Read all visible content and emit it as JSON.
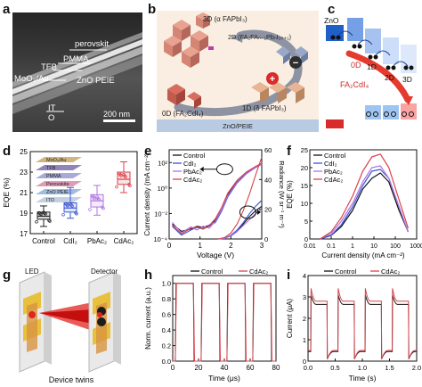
{
  "panel_labels": {
    "a": "a",
    "b": "b",
    "c": "c",
    "d": "d",
    "e": "e",
    "f": "f",
    "g": "g",
    "h": "h",
    "i": "i"
  },
  "panel_a": {
    "labels": [
      "perovskit",
      "PMMA",
      "TFB",
      "MoO₃/Au",
      "ZnO PEIE",
      "IT",
      "O"
    ],
    "scale_bar": "200 nm"
  },
  "panel_b": {
    "labels": [
      "3D (α FAPbI₃)",
      "2D (FA₂FAₙ₋₁PbₙI₃ₙ₊₁)",
      "0D (FA₂CdI₄)",
      "1D (δ FAPbI₃)",
      "ZnO/PEIE"
    ],
    "signs": [
      "−",
      "+"
    ]
  },
  "panel_c": {
    "labels": [
      "ZnO",
      "0D",
      "1D",
      "2D",
      "3D",
      "FA₂CdI₄"
    ],
    "band_colors": [
      "#1f5fc8",
      "#5d8fe0",
      "#95b7ef",
      "#c7daf8",
      "#d92b2b",
      "#f26a6a",
      "#f9a3a3"
    ]
  },
  "panel_d": {
    "device_layers": [
      "MoO₃/Au",
      "TFB",
      "PMMA",
      "Perovskite",
      "ZnO PEIE",
      "ITO"
    ],
    "chart_data": {
      "type": "box",
      "categories": [
        "Control",
        "CdI₂",
        "PbAc₂",
        "CdAc₂"
      ],
      "ylabel": "EQE (%)",
      "ylim": [
        17,
        25
      ],
      "yticks": [
        17,
        19,
        21,
        23,
        25
      ],
      "colors": [
        "#222222",
        "#3a55d6",
        "#b074e2",
        "#d9424b"
      ],
      "boxes": [
        {
          "name": "Control",
          "min": 17.7,
          "q1": 18.4,
          "median": 18.7,
          "q3": 19.1,
          "max": 19.7
        },
        {
          "name": "CdI₂",
          "min": 18.5,
          "q1": 19.1,
          "median": 19.5,
          "q3": 20.0,
          "max": 21.5
        },
        {
          "name": "PbAc₂",
          "min": 18.8,
          "q1": 19.6,
          "median": 20.2,
          "q3": 20.8,
          "max": 21.7
        },
        {
          "name": "CdAc₂",
          "min": 21.0,
          "q1": 21.8,
          "median": 22.3,
          "q3": 23.0,
          "max": 24.0
        }
      ]
    }
  },
  "panel_e": {
    "chart_data": {
      "type": "line",
      "xlabel": "Voltage (V)",
      "ylabel_left": "Current density (mA cm⁻²)",
      "ylabel_right": "Radiance (W sr⁻¹ m⁻²)",
      "xlim": [
        0,
        3
      ],
      "xticks": [
        0,
        1,
        2,
        3
      ],
      "ylim_left": [
        0.0001,
        1000.0
      ],
      "yticks_left": [
        "10⁻⁴",
        "10⁻²",
        "10⁰",
        "10²"
      ],
      "ylim_right": [
        0,
        60
      ],
      "yticks_right": [
        0,
        20,
        40,
        60
      ],
      "legend": [
        "Control",
        "CdI₂",
        "PbAc₂",
        "CdAc₂"
      ],
      "colors": [
        "#111111",
        "#3a55d6",
        "#b074e2",
        "#d9424b"
      ],
      "current_series": [
        {
          "name": "Control",
          "x": [
            0.1,
            0.4,
            0.7,
            0.9,
            1.1,
            1.3,
            1.5,
            1.7,
            1.9,
            2.2,
            2.5,
            2.8,
            3.0
          ],
          "y": [
            0.0015,
            0.0004,
            0.0006,
            0.001,
            0.0008,
            0.0012,
            0.003,
            0.02,
            0.3,
            3,
            15,
            45,
            80
          ]
        },
        {
          "name": "CdI₂",
          "x": [
            0.1,
            0.4,
            0.7,
            0.9,
            1.1,
            1.3,
            1.5,
            1.7,
            1.9,
            2.2,
            2.5,
            2.8,
            3.0
          ],
          "y": [
            0.001,
            0.0002,
            0.0005,
            0.0008,
            0.0006,
            0.001,
            0.002,
            0.015,
            0.2,
            2.5,
            13,
            40,
            75
          ]
        },
        {
          "name": "PbAc₂",
          "x": [
            0.1,
            0.4,
            0.7,
            0.9,
            1.1,
            1.3,
            1.5,
            1.7,
            1.9,
            2.2,
            2.5,
            2.8,
            3.0
          ],
          "y": [
            0.002,
            0.0003,
            0.0009,
            0.0005,
            0.001,
            0.0007,
            0.0025,
            0.02,
            0.25,
            2.8,
            14,
            42,
            78
          ]
        },
        {
          "name": "CdAc₂",
          "x": [
            0.1,
            0.4,
            0.7,
            0.9,
            1.1,
            1.3,
            1.5,
            1.7,
            1.9,
            2.2,
            2.5,
            2.8,
            3.0
          ],
          "y": [
            0.0012,
            0.00025,
            0.0007,
            0.0009,
            0.0006,
            0.0011,
            0.004,
            0.03,
            0.4,
            4,
            18,
            50,
            90
          ]
        }
      ],
      "radiance_series": [
        {
          "name": "Control",
          "x": [
            1.6,
            1.8,
            2.0,
            2.2,
            2.4,
            2.6,
            2.8,
            3.0
          ],
          "y": [
            0,
            0.5,
            2,
            5,
            10,
            15,
            19,
            22
          ]
        },
        {
          "name": "CdI₂",
          "x": [
            1.6,
            1.8,
            2.0,
            2.2,
            2.4,
            2.6,
            2.8,
            3.0
          ],
          "y": [
            0,
            0.5,
            2.5,
            6,
            11,
            17,
            22,
            26
          ]
        },
        {
          "name": "PbAc₂",
          "x": [
            1.6,
            1.8,
            2.0,
            2.2,
            2.4,
            2.6,
            2.8,
            3.0
          ],
          "y": [
            0,
            0.4,
            2,
            5,
            9,
            13,
            17,
            20
          ]
        },
        {
          "name": "CdAc₂",
          "x": [
            1.6,
            1.8,
            2.0,
            2.2,
            2.4,
            2.6,
            2.8,
            3.0
          ],
          "y": [
            0,
            1,
            4,
            10,
            19,
            30,
            43,
            55
          ]
        }
      ]
    }
  },
  "panel_f": {
    "chart_data": {
      "type": "line",
      "xlabel": "Current density (mA cm⁻²)",
      "ylabel": "EQE (%)",
      "xscale": "log",
      "xlim": [
        0.01,
        1000
      ],
      "xticks": [
        "0.01",
        "0.1",
        "1",
        "10",
        "100",
        "1000"
      ],
      "ylim": [
        0,
        25
      ],
      "yticks": [
        0,
        5,
        10,
        15,
        20,
        25
      ],
      "legend": [
        "Control",
        "CdI₂",
        "PbAc₂",
        "CdAc₂"
      ],
      "colors": [
        "#111111",
        "#3a55d6",
        "#b074e2",
        "#d9424b"
      ],
      "series": [
        {
          "name": "Control",
          "x": [
            0.03,
            0.1,
            0.3,
            1,
            3,
            8,
            20,
            50,
            150,
            400
          ],
          "y": [
            0,
            1,
            3.5,
            8,
            14,
            17,
            18.5,
            16,
            8,
            2
          ]
        },
        {
          "name": "CdI₂",
          "x": [
            0.03,
            0.1,
            0.3,
            1,
            3,
            8,
            20,
            50,
            150,
            400
          ],
          "y": [
            0,
            1,
            4,
            9,
            15,
            19,
            19.5,
            17,
            9,
            2
          ]
        },
        {
          "name": "PbAc₂",
          "x": [
            0.03,
            0.1,
            0.3,
            1,
            3,
            8,
            20,
            50,
            150,
            400
          ],
          "y": [
            0,
            1.5,
            5,
            10,
            16,
            20,
            20.5,
            17,
            9,
            2
          ]
        },
        {
          "name": "CdAc₂",
          "x": [
            0.03,
            0.1,
            0.3,
            1,
            3,
            8,
            20,
            50,
            150,
            400
          ],
          "y": [
            0,
            2,
            6,
            12,
            19,
            23,
            23.8,
            20,
            11,
            3
          ]
        }
      ]
    }
  },
  "panel_g": {
    "labels": [
      "LED",
      "Detector",
      "Device twins"
    ]
  },
  "panel_h": {
    "chart_data": {
      "type": "line",
      "xlabel": "Time (μs)",
      "ylabel": "Norm. current (a.u.)",
      "xlim": [
        0,
        80
      ],
      "xticks": [
        0,
        20,
        40,
        60,
        80
      ],
      "ylim": [
        0,
        1.1
      ],
      "yticks": [
        "0.0",
        "0.2",
        "0.4",
        "0.6",
        "0.8",
        "1.0"
      ],
      "legend": [
        "Control",
        "CdAc₂"
      ],
      "colors": [
        "#111111",
        "#d9424b"
      ],
      "pulses_on": [
        [
          2,
          16
        ],
        [
          22,
          36
        ],
        [
          42,
          56
        ],
        [
          62,
          76
        ]
      ]
    }
  },
  "panel_i": {
    "chart_data": {
      "type": "line",
      "xlabel": "Time (s)",
      "ylabel": "Current (μA)",
      "xlim": [
        0,
        2
      ],
      "xticks": [
        "0.0",
        "0.5",
        "1.0",
        "1.5",
        "2.0"
      ],
      "ylim": [
        0,
        4
      ],
      "yticks": [
        0,
        1,
        2,
        3,
        4
      ],
      "legend": [
        "Control",
        "CdAc₂"
      ],
      "colors": [
        "#111111",
        "#d9424b"
      ],
      "pulses_on": [
        [
          0.05,
          0.35
        ],
        [
          0.55,
          0.85
        ],
        [
          1.05,
          1.35
        ],
        [
          1.55,
          1.85
        ]
      ]
    }
  }
}
